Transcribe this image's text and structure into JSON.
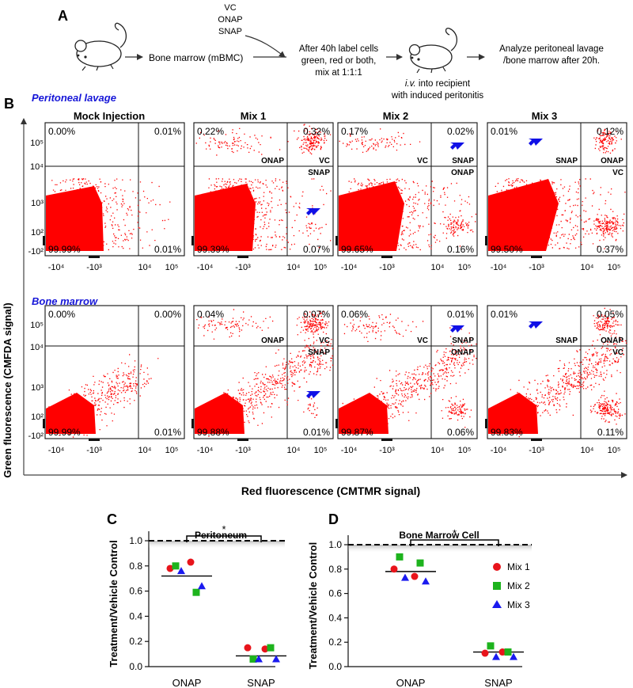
{
  "panel_a": {
    "label": "A",
    "treatments": [
      "VC",
      "ONAP",
      "SNAP"
    ],
    "step1": "Bone marrow (mBMC)",
    "step2": [
      "After 40h label cells",
      "green, red or both,",
      "mix at 1:1:1"
    ],
    "step3_italic": "i.v.",
    "step3": [
      " into recipient",
      "with induced peritonitis"
    ],
    "step4": [
      "Analyze peritoneal lavage",
      "/bone marrow after 20h."
    ]
  },
  "panel_b": {
    "label": "B",
    "y_label": "Green fluorescence (CMFDA signal)",
    "x_label": "Red fluorescence  (CMTMR signal)",
    "x_ticks": [
      "-10⁴",
      "-10³",
      "10⁴",
      "10⁵"
    ],
    "y_ticks": [
      "10⁵",
      "10⁴",
      "10³",
      "10²",
      "-10²"
    ],
    "row_labels": [
      "Peritoneal lavage",
      "Bone marrow"
    ],
    "columns": [
      "Mock Injection",
      "Mix 1",
      "Mix 2",
      "Mix 3"
    ],
    "rows": [
      {
        "name": "Peritoneal lavage",
        "plots": [
          {
            "ul": "0.00%",
            "ur": "0.01%",
            "ll": "99.99%",
            "lr": "0.01%",
            "tags": [],
            "arrows": []
          },
          {
            "ul": "0.22%",
            "ur": "0.32%",
            "ll": "99.39%",
            "lr": "0.07%",
            "tags": [
              "ONAP",
              "VC",
              "SNAP"
            ],
            "arrows": [
              "lr"
            ]
          },
          {
            "ul": "0.17%",
            "ur": "0.02%",
            "ll": "99.65%",
            "lr": "0.16%",
            "tags": [
              "VC",
              "SNAP",
              "ONAP"
            ],
            "arrows": [
              "ur"
            ]
          },
          {
            "ul": "0.01%",
            "ur": "0.12%",
            "ll": "99.50%",
            "lr": "0.37%",
            "tags": [
              "SNAP",
              "ONAP",
              "VC"
            ],
            "arrows": [
              "ul"
            ]
          }
        ]
      },
      {
        "name": "Bone marrow",
        "plots": [
          {
            "ul": "0.00%",
            "ur": "0.00%",
            "ll": "99.99%",
            "lr": "0.01%",
            "tags": [],
            "arrows": []
          },
          {
            "ul": "0.04%",
            "ur": "0.07%",
            "ll": "99.88%",
            "lr": "0.01%",
            "tags": [
              "ONAP",
              "VC",
              "SNAP"
            ],
            "arrows": [
              "lr"
            ]
          },
          {
            "ul": "0.06%",
            "ur": "0.01%",
            "ll": "99.87%",
            "lr": "0.06%",
            "tags": [
              "VC",
              "SNAP",
              "ONAP"
            ],
            "arrows": [
              "ur"
            ]
          },
          {
            "ul": "0.01%",
            "ur": "0.05%",
            "ll": "99.83%",
            "lr": "0.11%",
            "tags": [
              "SNAP",
              "ONAP",
              "VC"
            ],
            "arrows": [
              "ul"
            ]
          }
        ]
      }
    ]
  },
  "legend": [
    "Mix 1",
    "Mix 2",
    "Mix 3"
  ],
  "colors": {
    "mix1": "#e8141b",
    "mix2": "#1db31d",
    "mix3": "#1a1aef",
    "dots": "#ff0000",
    "arrow": "#1010e6",
    "row_label": "#1616d8"
  },
  "chart_data": [
    {
      "type": "scatter",
      "panel": "C",
      "title": "Peritoneum",
      "ylabel": "Treatment/Vehicle Control",
      "categories": [
        "ONAP",
        "SNAP"
      ],
      "ylim": [
        0,
        1.0
      ],
      "yticks": [
        "0.0",
        "0.2",
        "0.4",
        "0.6",
        "0.8",
        "1.0"
      ],
      "reference_line": 1.0,
      "significance": "*",
      "medians": [
        0.72,
        0.085
      ],
      "series": [
        {
          "name": "Mix 1",
          "marker": "circle",
          "ONAP": [
            0.78,
            0.83
          ],
          "SNAP": [
            0.15,
            0.14
          ]
        },
        {
          "name": "Mix 2",
          "marker": "square",
          "ONAP": [
            0.8,
            0.59
          ],
          "SNAP": [
            0.06,
            0.15
          ]
        },
        {
          "name": "Mix 3",
          "marker": "triangle",
          "ONAP": [
            0.76,
            0.64
          ],
          "SNAP": [
            0.06,
            0.06
          ]
        }
      ]
    },
    {
      "type": "scatter",
      "panel": "D",
      "title": "Bone Marrow Cell",
      "ylabel": "Treatment/Vehicle Control",
      "categories": [
        "ONAP",
        "SNAP"
      ],
      "ylim": [
        0,
        1.0
      ],
      "yticks": [
        "0.0",
        "0.2",
        "0.4",
        "0.6",
        "0.8",
        "1.0"
      ],
      "reference_line": 1.0,
      "significance": "*",
      "medians": [
        0.78,
        0.12
      ],
      "series": [
        {
          "name": "Mix 1",
          "marker": "circle",
          "ONAP": [
            0.8,
            0.74
          ],
          "SNAP": [
            0.11,
            0.12
          ]
        },
        {
          "name": "Mix 2",
          "marker": "square",
          "ONAP": [
            0.9,
            0.85
          ],
          "SNAP": [
            0.17,
            0.12
          ]
        },
        {
          "name": "Mix 3",
          "marker": "triangle",
          "ONAP": [
            0.73,
            0.7
          ],
          "SNAP": [
            0.08,
            0.08
          ]
        }
      ]
    }
  ]
}
